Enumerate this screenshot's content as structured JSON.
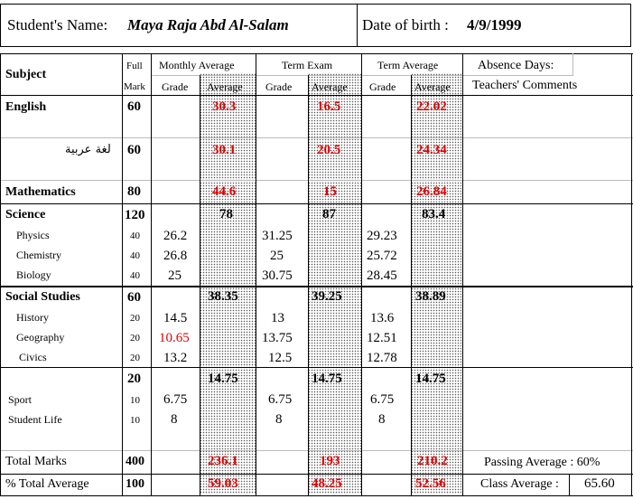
{
  "header": {
    "student_name_label": "Student's Name:",
    "student_name": "Maya Raja Abd Al-Salam",
    "dob_label": "Date of birth :",
    "dob": "4/9/1999"
  },
  "columns": {
    "subject": "Subject",
    "full": "Full",
    "mark": "Mark",
    "monthly": "Monthly Average",
    "term_exam": "Term Exam",
    "term_avg": "Term Average",
    "grade": "Grade",
    "average": "Average",
    "absence_days": "Absence Days:",
    "teachers_comments": "Teachers' Comments"
  },
  "rows": {
    "english": {
      "name": "English",
      "full": "60",
      "monthly_avg": "30.3",
      "term_exam_avg": "16.5",
      "term_avg": "22.02"
    },
    "arabic": {
      "name": "لغة عربية",
      "full": "60",
      "monthly_avg": "30.1",
      "term_exam_avg": "20.5",
      "term_avg": "24.34"
    },
    "math": {
      "name": "Mathematics",
      "full": "80",
      "monthly_avg": "44.6",
      "term_exam_avg": "15",
      "term_avg": "26.84"
    },
    "science": {
      "name": "Science",
      "full": "120",
      "monthly_avg": "78",
      "term_exam_avg": "87",
      "term_avg": "83.4"
    },
    "physics": {
      "name": "Physics",
      "full": "40",
      "m_grade": "26.2",
      "e_grade": "31.25",
      "t_grade": "29.23"
    },
    "chemistry": {
      "name": "Chemistry",
      "full": "40",
      "m_grade": "26.8",
      "e_grade": "25",
      "t_grade": "25.72"
    },
    "biology": {
      "name": "Biology",
      "full": "40",
      "m_grade": "25",
      "e_grade": "30.75",
      "t_grade": "28.45"
    },
    "social": {
      "name": "Social Studies",
      "full": "60",
      "monthly_avg": "38.35",
      "term_exam_avg": "39.25",
      "term_avg": "38.89"
    },
    "history": {
      "name": "History",
      "full": "20",
      "m_grade": "14.5",
      "e_grade": "13",
      "t_grade": "13.6"
    },
    "geography": {
      "name": "Geography",
      "full": "20",
      "m_grade": "10.65",
      "e_grade": "13.75",
      "t_grade": "12.51"
    },
    "civics": {
      "name": "Civics",
      "full": "20",
      "m_grade": "13.2",
      "e_grade": "12.5",
      "t_grade": "12.78"
    },
    "activities": {
      "full": "20",
      "monthly_avg": "14.75",
      "term_exam_avg": "14.75",
      "term_avg": "14.75"
    },
    "sport": {
      "name": "Sport",
      "full": "10",
      "m_grade": "6.75",
      "e_grade": "6.75",
      "t_grade": "6.75"
    },
    "student_life": {
      "name": "Student Life",
      "full": "10",
      "m_grade": "8",
      "e_grade": "8",
      "t_grade": "8"
    }
  },
  "totals": {
    "total_marks_label": "Total Marks",
    "total_full": "400",
    "total_monthly": "236.1",
    "total_exam": "193",
    "total_term": "210.2",
    "pct_label": "% Total Average",
    "pct_full": "100",
    "pct_monthly": "59.03",
    "pct_exam": "48.25",
    "pct_term": "52.56",
    "passing_label": "Passing Average : 60%",
    "class_avg_label": "Class Average :",
    "class_avg": "65.60"
  },
  "colors": {
    "red": "#e00000",
    "dots": "#555555"
  }
}
